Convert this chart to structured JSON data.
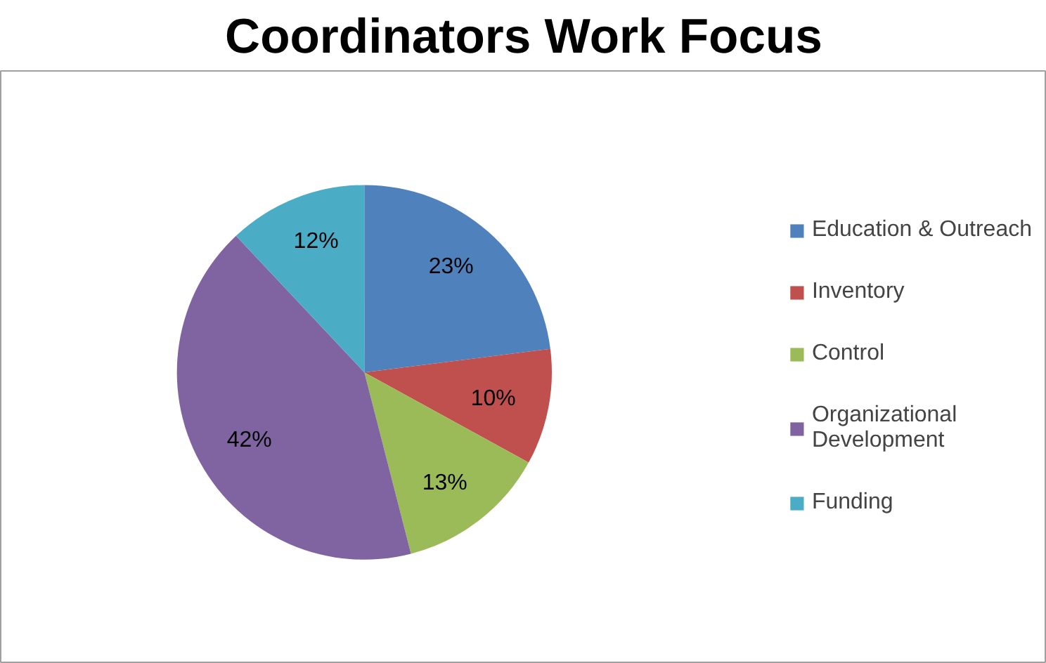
{
  "chart_data": {
    "type": "pie",
    "title": "Coordinators Work Focus",
    "categories": [
      "Education & Outreach",
      "Inventory",
      "Control",
      "Organizational Development",
      "Funding"
    ],
    "values": [
      23,
      10,
      13,
      42,
      12
    ],
    "colors": [
      "#4f81bd",
      "#c0504d",
      "#9bbb59",
      "#8064a2",
      "#4bacc6"
    ],
    "value_labels": [
      "23%",
      "10%",
      "13%",
      "42%",
      "12%"
    ],
    "legend": "right"
  }
}
